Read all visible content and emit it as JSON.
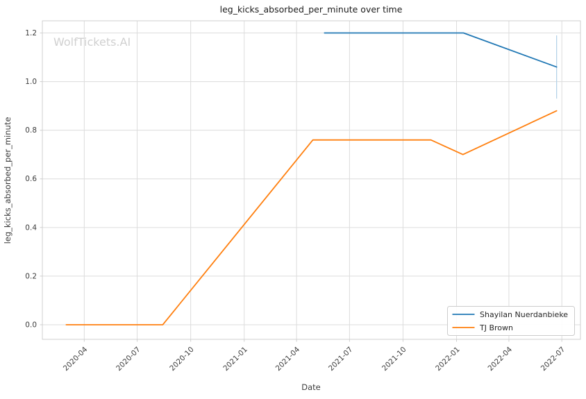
{
  "watermark": "WolfTickets.AI",
  "chart_data": {
    "type": "line",
    "title": "leg_kicks_absorbed_per_minute over time",
    "xlabel": "Date",
    "ylabel": "leg_kicks_absorbed_per_minute",
    "grid": true,
    "legend_position": "lower right",
    "x_ticks": [
      {
        "date": "2020-04-01",
        "label": "2020-04"
      },
      {
        "date": "2020-07-01",
        "label": "2020-07"
      },
      {
        "date": "2020-10-01",
        "label": "2020-10"
      },
      {
        "date": "2021-01-01",
        "label": "2021-01"
      },
      {
        "date": "2021-04-01",
        "label": "2021-04"
      },
      {
        "date": "2021-07-01",
        "label": "2021-07"
      },
      {
        "date": "2021-10-01",
        "label": "2021-10"
      },
      {
        "date": "2022-01-01",
        "label": "2022-01"
      },
      {
        "date": "2022-04-01",
        "label": "2022-04"
      },
      {
        "date": "2022-07-01",
        "label": "2022-07"
      }
    ],
    "y_ticks": [
      0.0,
      0.2,
      0.4,
      0.6,
      0.8,
      1.0,
      1.2
    ],
    "xlim": [
      "2020-01-20",
      "2022-08-02"
    ],
    "ylim": [
      -0.06,
      1.25
    ],
    "series": [
      {
        "name": "Shayilan Nuerdanbieke",
        "color": "#1f77b4",
        "points": [
          [
            "2021-05-19",
            1.2
          ],
          [
            "2022-01-13",
            1.2
          ],
          [
            "2022-06-22",
            1.06
          ]
        ],
        "error_bar": {
          "date": "2022-06-22",
          "low": 0.93,
          "high": 1.19,
          "color": "#b5d3e9"
        }
      },
      {
        "name": "TJ Brown",
        "color": "#ff7f0e",
        "points": [
          [
            "2020-03-01",
            0.0
          ],
          [
            "2020-08-14",
            0.0
          ],
          [
            "2021-04-29",
            0.76
          ],
          [
            "2021-11-18",
            0.76
          ],
          [
            "2022-01-12",
            0.7
          ],
          [
            "2022-06-22",
            0.88
          ]
        ]
      }
    ],
    "colors": {
      "background": "#ffffff",
      "grid": "#dcdcdc",
      "spine": "#cfcfcf",
      "text": "#3b3b3b",
      "title": "#1a1a1a",
      "watermark": "#d0d0d0",
      "legend_border": "#cccccc"
    }
  }
}
